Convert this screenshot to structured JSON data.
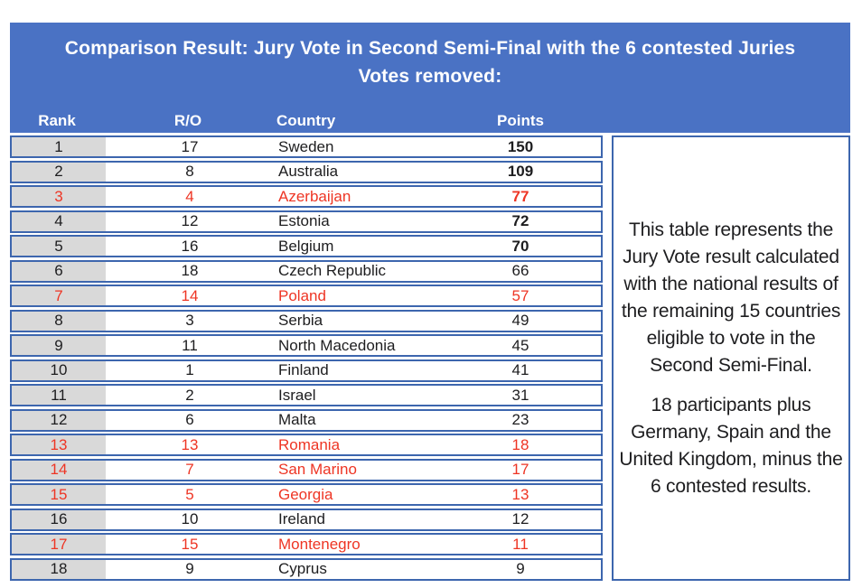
{
  "header": {
    "title": "Comparison Result: Jury Vote in Second Semi-Final with the 6 contested Juries Votes removed:",
    "title_line1": "Comparison Result: Jury Vote in Second Semi-Final with the 6 contested Juries",
    "title_line2": "Votes removed:"
  },
  "table": {
    "columns": {
      "rank": "Rank",
      "ro": "R/O",
      "country": "Country",
      "points": "Points"
    },
    "rows": [
      {
        "rank": "1",
        "ro": "17",
        "country": "Sweden",
        "points": "150",
        "contested": false,
        "bold_points": true
      },
      {
        "rank": "2",
        "ro": "8",
        "country": "Australia",
        "points": "109",
        "contested": false,
        "bold_points": true
      },
      {
        "rank": "3",
        "ro": "4",
        "country": "Azerbaijan",
        "points": "77",
        "contested": true,
        "bold_points": true
      },
      {
        "rank": "4",
        "ro": "12",
        "country": "Estonia",
        "points": "72",
        "contested": false,
        "bold_points": true
      },
      {
        "rank": "5",
        "ro": "16",
        "country": "Belgium",
        "points": "70",
        "contested": false,
        "bold_points": true
      },
      {
        "rank": "6",
        "ro": "18",
        "country": "Czech Republic",
        "points": "66",
        "contested": false,
        "bold_points": false
      },
      {
        "rank": "7",
        "ro": "14",
        "country": "Poland",
        "points": "57",
        "contested": true,
        "bold_points": false
      },
      {
        "rank": "8",
        "ro": "3",
        "country": "Serbia",
        "points": "49",
        "contested": false,
        "bold_points": false
      },
      {
        "rank": "9",
        "ro": "11",
        "country": "North Macedonia",
        "points": "45",
        "contested": false,
        "bold_points": false
      },
      {
        "rank": "10",
        "ro": "1",
        "country": "Finland",
        "points": "41",
        "contested": false,
        "bold_points": false
      },
      {
        "rank": "11",
        "ro": "2",
        "country": "Israel",
        "points": "31",
        "contested": false,
        "bold_points": false
      },
      {
        "rank": "12",
        "ro": "6",
        "country": "Malta",
        "points": "23",
        "contested": false,
        "bold_points": false
      },
      {
        "rank": "13",
        "ro": "13",
        "country": "Romania",
        "points": "18",
        "contested": true,
        "bold_points": false
      },
      {
        "rank": "14",
        "ro": "7",
        "country": "San Marino",
        "points": "17",
        "contested": true,
        "bold_points": false
      },
      {
        "rank": "15",
        "ro": "5",
        "country": "Georgia",
        "points": "13",
        "contested": true,
        "bold_points": false
      },
      {
        "rank": "16",
        "ro": "10",
        "country": "Ireland",
        "points": "12",
        "contested": false,
        "bold_points": false
      },
      {
        "rank": "17",
        "ro": "15",
        "country": "Montenegro",
        "points": "11",
        "contested": true,
        "bold_points": false
      },
      {
        "rank": "18",
        "ro": "9",
        "country": "Cyprus",
        "points": "9",
        "contested": false,
        "bold_points": false
      }
    ]
  },
  "side_note": {
    "paragraph1": "This table represents the Jury Vote result calculated with the national results of the remaining 15 countries eligible to vote in the Second Semi-Final.",
    "paragraph2": "18 participants plus Germany, Spain and the United Kingdom, minus the 6 contested results."
  },
  "colors": {
    "header_blue": "#4a72c4",
    "border_blue": "#3d66ae",
    "rank_gray": "#d9d9d9",
    "contested_red": "#ee3524",
    "text_ink": "#1d1d1f"
  },
  "chart_data": {
    "type": "table",
    "title": "Comparison Result: Jury Vote in Second Semi-Final with the 6 contested Juries Votes removed:",
    "columns": [
      "Rank",
      "R/O",
      "Country",
      "Points"
    ],
    "rows": [
      [
        1,
        17,
        "Sweden",
        150
      ],
      [
        2,
        8,
        "Australia",
        109
      ],
      [
        3,
        4,
        "Azerbaijan",
        77
      ],
      [
        4,
        12,
        "Estonia",
        72
      ],
      [
        5,
        16,
        "Belgium",
        70
      ],
      [
        6,
        18,
        "Czech Republic",
        66
      ],
      [
        7,
        14,
        "Poland",
        57
      ],
      [
        8,
        3,
        "Serbia",
        49
      ],
      [
        9,
        11,
        "North Macedonia",
        45
      ],
      [
        10,
        1,
        "Finland",
        41
      ],
      [
        11,
        2,
        "Israel",
        31
      ],
      [
        12,
        6,
        "Malta",
        23
      ],
      [
        13,
        13,
        "Romania",
        18
      ],
      [
        14,
        7,
        "San Marino",
        17
      ],
      [
        15,
        5,
        "Georgia",
        13
      ],
      [
        16,
        10,
        "Ireland",
        12
      ],
      [
        17,
        15,
        "Montenegro",
        11
      ],
      [
        18,
        9,
        "Cyprus",
        9
      ]
    ],
    "contested_countries_red": [
      "Azerbaijan",
      "Poland",
      "Romania",
      "San Marino",
      "Georgia",
      "Montenegro"
    ],
    "bold_points_ranks": [
      1,
      2,
      3,
      4,
      5
    ],
    "annotations": [
      "This table represents the Jury Vote result calculated with the national results of the remaining 15 countries eligible to vote in the Second Semi-Final.",
      "18 participants plus Germany, Spain and the United Kingdom, minus the 6 contested results."
    ]
  }
}
